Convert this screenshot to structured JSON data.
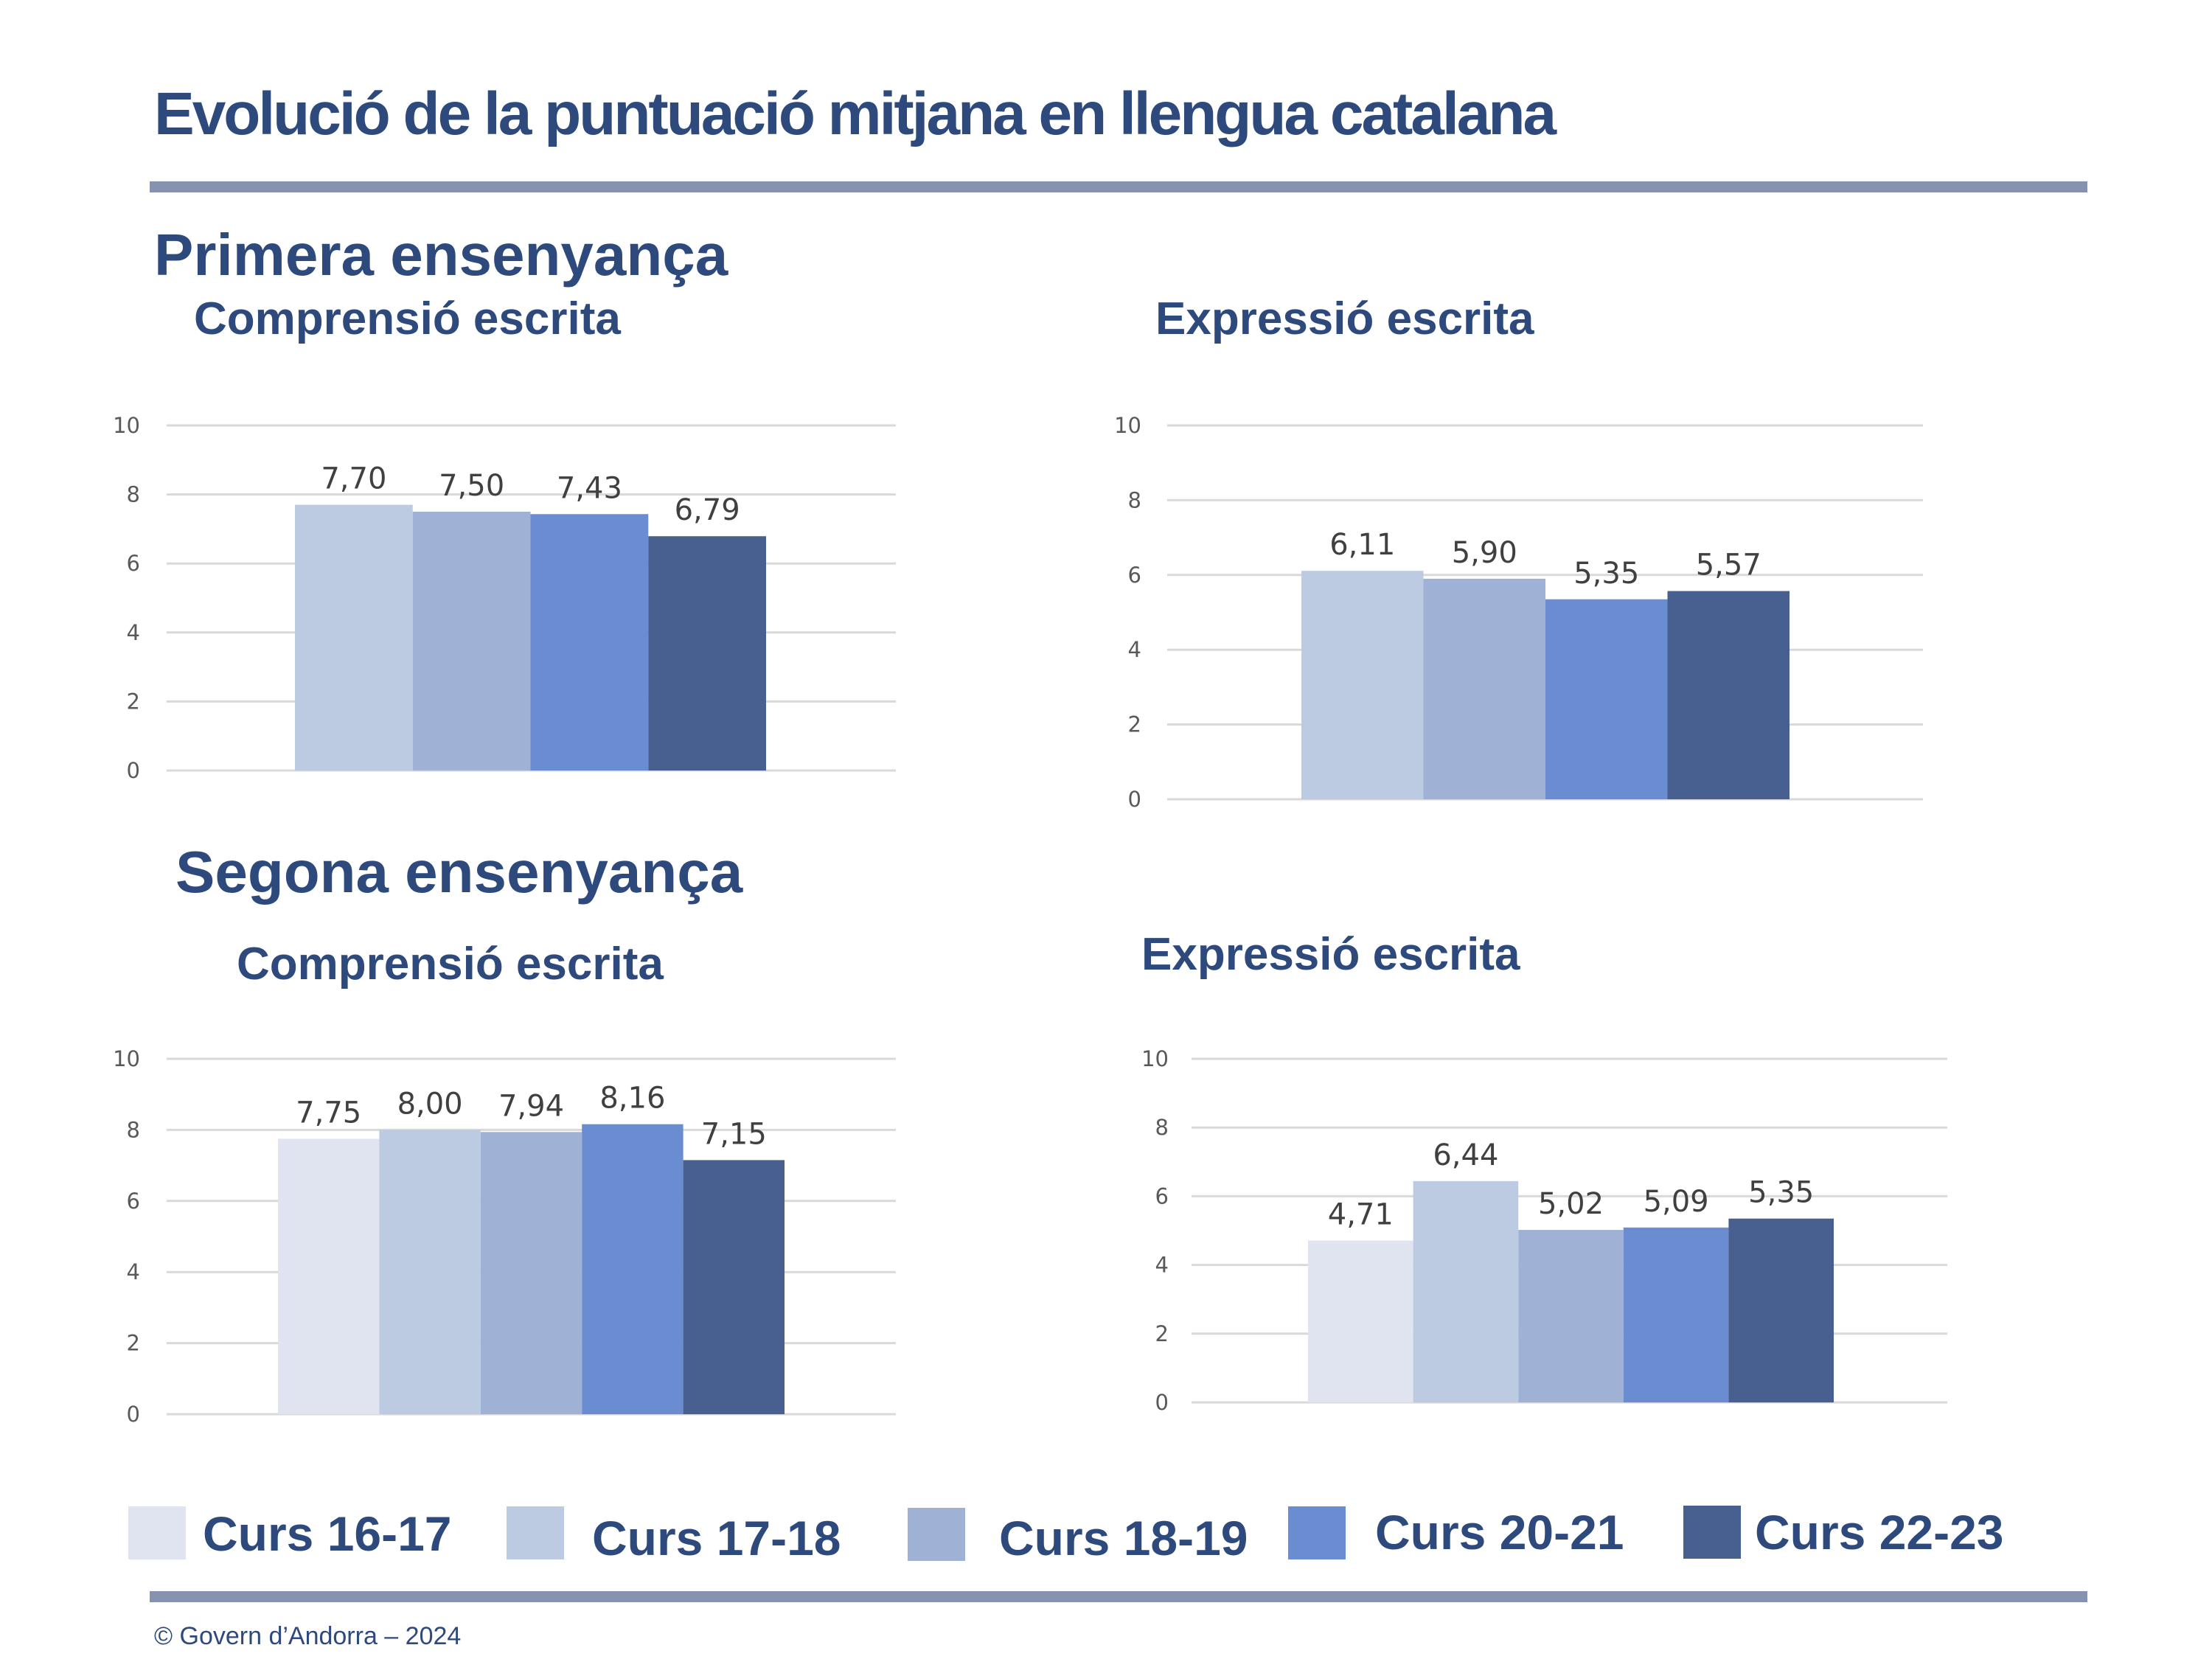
{
  "page": {
    "title": "Evolució de la puntuació mitjana en llengua catalana",
    "copyright": "© Govern d’Andorra – 2024"
  },
  "sections": [
    {
      "title": "Primera ensenyança"
    },
    {
      "title": "Segona ensenyança"
    }
  ],
  "legend": [
    {
      "label": "Curs 16-17",
      "color": "#dfe4f0"
    },
    {
      "label": "Curs 17-18",
      "color": "#bdcbe2"
    },
    {
      "label": "Curs 18-19",
      "color": "#9fb2d5"
    },
    {
      "label": "Curs 20-21",
      "color": "#698dd0"
    },
    {
      "label": "Curs 22-23",
      "color": "#48608f"
    }
  ],
  "chart_data": [
    {
      "type": "bar",
      "section": "Primera ensenyança",
      "title": "Comprensió escrita",
      "series_names": [
        "Curs 17-18",
        "Curs 18-19",
        "Curs 20-21",
        "Curs 22-23"
      ],
      "values": [
        7.7,
        7.5,
        7.43,
        6.79
      ],
      "labels": [
        "7,70",
        "7,50",
        "7,43",
        "6,79"
      ],
      "ylim": [
        0,
        10
      ],
      "yticks": [
        "0",
        "2",
        "4",
        "6",
        "8",
        "10"
      ],
      "grid": true
    },
    {
      "type": "bar",
      "section": "Primera ensenyança",
      "title": "Expressió escrita",
      "series_names": [
        "Curs 17-18",
        "Curs 18-19",
        "Curs 20-21",
        "Curs 22-23"
      ],
      "values": [
        6.11,
        5.9,
        5.35,
        5.57
      ],
      "labels": [
        "6,11",
        "5,90",
        "5,35",
        "5,57"
      ],
      "ylim": [
        0,
        10
      ],
      "yticks": [
        "0",
        "2",
        "4",
        "6",
        "8",
        "10"
      ],
      "grid": true
    },
    {
      "type": "bar",
      "section": "Segona ensenyança",
      "title": "Comprensió escrita",
      "series_names": [
        "Curs 16-17",
        "Curs 17-18",
        "Curs 18-19",
        "Curs 20-21",
        "Curs 22-23"
      ],
      "values": [
        7.75,
        8.0,
        7.94,
        8.16,
        7.15
      ],
      "labels": [
        "7,75",
        "8,00",
        "7,94",
        "8,16",
        "7,15"
      ],
      "ylim": [
        0,
        10
      ],
      "yticks": [
        "0",
        "2",
        "4",
        "6",
        "8",
        "10"
      ],
      "grid": true
    },
    {
      "type": "bar",
      "section": "Segona ensenyança",
      "title": "Expressió escrita",
      "series_names": [
        "Curs 16-17",
        "Curs 17-18",
        "Curs 18-19",
        "Curs 20-21",
        "Curs 22-23"
      ],
      "values": [
        4.71,
        6.44,
        5.02,
        5.09,
        5.35
      ],
      "labels": [
        "4,71",
        "6,44",
        "5,02",
        "5,09",
        "5,35"
      ],
      "ylim": [
        0,
        10
      ],
      "yticks": [
        "0",
        "2",
        "4",
        "6",
        "8",
        "10"
      ],
      "grid": true
    }
  ]
}
